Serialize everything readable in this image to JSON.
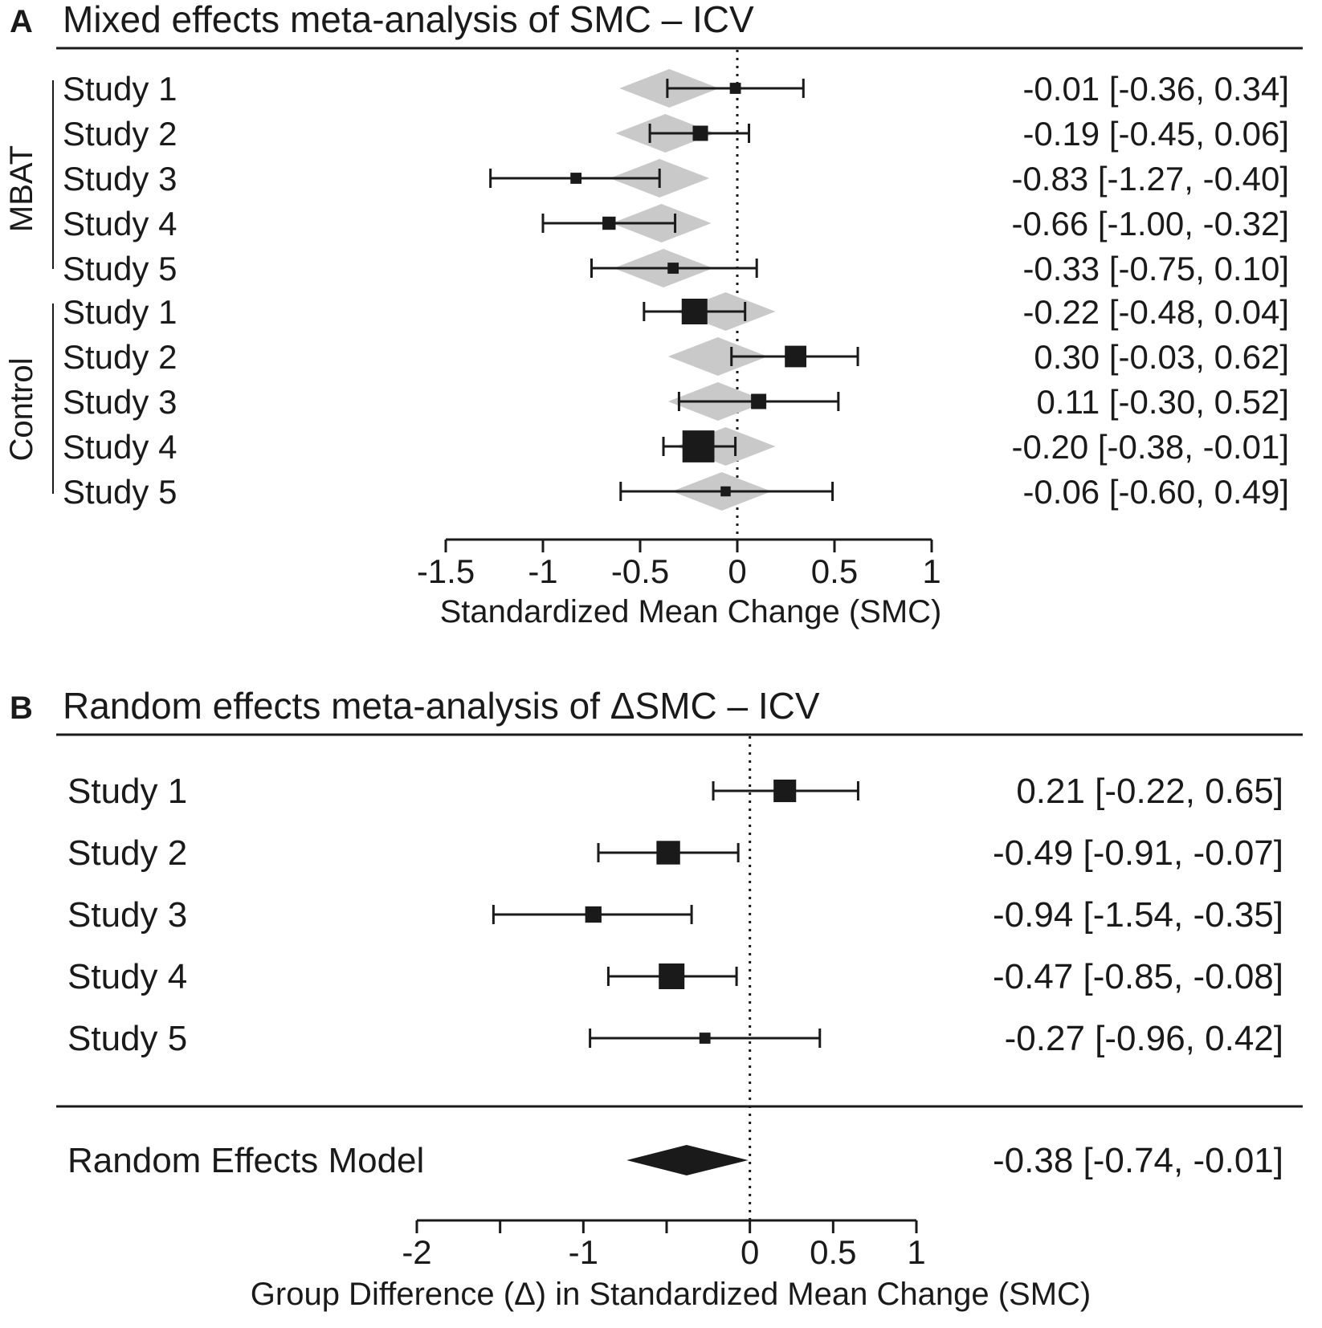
{
  "chart_data": [
    {
      "type": "forest",
      "panel_label": "A",
      "title": "Mixed effects meta-analysis of SMC – ICV",
      "xlabel": "Standardized Mean Change (SMC)",
      "xlim": [
        -1.5,
        1
      ],
      "ticks": [
        -1.5,
        -1,
        -0.5,
        0,
        0.5,
        1
      ],
      "tick_labels": [
        "-1.5",
        "-1",
        "-0.5",
        "0",
        "0.5",
        "1"
      ],
      "reference_line": 0,
      "groups": [
        {
          "name": "MBAT",
          "rows": [
            {
              "label": "Study 1",
              "est": -0.01,
              "lo": -0.36,
              "hi": 0.34,
              "text": "-0.01 [-0.36,  0.34]",
              "weight": 0.3,
              "pred": -0.35
            },
            {
              "label": "Study 2",
              "est": -0.19,
              "lo": -0.45,
              "hi": 0.06,
              "text": "-0.19 [-0.45,  0.06]",
              "weight": 0.5,
              "pred": -0.37
            },
            {
              "label": "Study 3",
              "est": -0.83,
              "lo": -1.27,
              "hi": -0.4,
              "text": "-0.83 [-1.27, -0.40]",
              "weight": 0.3,
              "pred": -0.4
            },
            {
              "label": "Study 4",
              "est": -0.66,
              "lo": -1.0,
              "hi": -0.32,
              "text": "-0.66 [-1.00, -0.32]",
              "weight": 0.4,
              "pred": -0.39
            },
            {
              "label": "Study 5",
              "est": -0.33,
              "lo": -0.75,
              "hi": 0.1,
              "text": "-0.33 [-0.75,  0.10]",
              "weight": 0.3,
              "pred": -0.38
            }
          ]
        },
        {
          "name": "Control",
          "rows": [
            {
              "label": "Study 1",
              "est": -0.22,
              "lo": -0.48,
              "hi": 0.04,
              "text": "-0.22 [-0.48,  0.04]",
              "weight": 1.0,
              "pred": -0.06
            },
            {
              "label": "Study 2",
              "est": 0.3,
              "lo": -0.03,
              "hi": 0.62,
              "text": "0.30 [-0.03,  0.62]",
              "weight": 0.8,
              "pred": -0.1
            },
            {
              "label": "Study 3",
              "est": 0.11,
              "lo": -0.3,
              "hi": 0.52,
              "text": "0.11 [-0.30,  0.52]",
              "weight": 0.5,
              "pred": -0.1
            },
            {
              "label": "Study 4",
              "est": -0.2,
              "lo": -0.38,
              "hi": -0.01,
              "text": "-0.20 [-0.38, -0.01]",
              "weight": 1.3,
              "pred": -0.06
            },
            {
              "label": "Study 5",
              "est": -0.06,
              "lo": -0.6,
              "hi": 0.49,
              "text": "-0.06 [-0.60,  0.49]",
              "weight": 0.25,
              "pred": -0.08
            }
          ]
        }
      ]
    },
    {
      "type": "forest",
      "panel_label": "B",
      "title": "Random effects meta-analysis of ΔSMC – ICV",
      "xlabel": "Group Difference (Δ) in Standardized Mean Change (SMC)",
      "xlim": [
        -2,
        1
      ],
      "ticks": [
        -2,
        -1.5,
        -1,
        -0.5,
        0,
        0.5,
        1
      ],
      "tick_labels": [
        "-2",
        "",
        "-1",
        "",
        "0",
        "0.5",
        "1"
      ],
      "reference_line": 0,
      "rows": [
        {
          "label": "Study 1",
          "est": 0.21,
          "lo": -0.22,
          "hi": 0.65,
          "text": "0.21 [-0.22,  0.65]",
          "weight": 0.85
        },
        {
          "label": "Study 2",
          "est": -0.49,
          "lo": -0.91,
          "hi": -0.07,
          "text": "-0.49 [-0.91, -0.07]",
          "weight": 0.9
        },
        {
          "label": "Study 3",
          "est": -0.94,
          "lo": -1.54,
          "hi": -0.35,
          "text": "-0.94 [-1.54, -0.35]",
          "weight": 0.55
        },
        {
          "label": "Study 4",
          "est": -0.47,
          "lo": -0.85,
          "hi": -0.08,
          "text": "-0.47 [-0.85, -0.08]",
          "weight": 1.0
        },
        {
          "label": "Study 5",
          "est": -0.27,
          "lo": -0.96,
          "hi": 0.42,
          "text": "-0.27 [-0.96,  0.42]",
          "weight": 0.3
        }
      ],
      "summary": {
        "label": "Random Effects Model",
        "est": -0.38,
        "lo": -0.74,
        "hi": -0.01,
        "text": "-0.38 [-0.74, -0.01]"
      }
    }
  ]
}
